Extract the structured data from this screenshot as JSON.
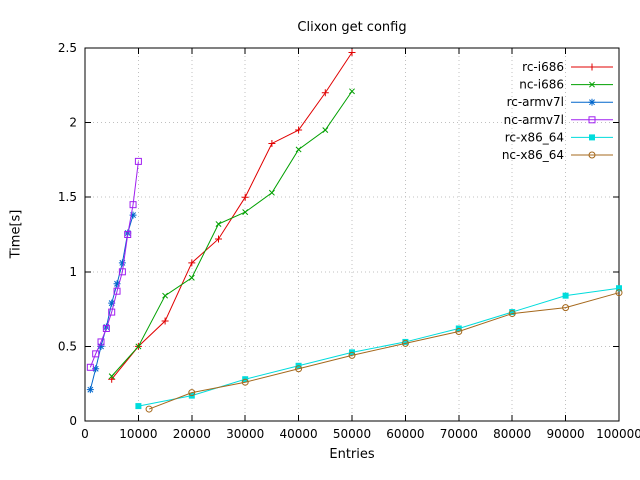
{
  "chart_data": {
    "type": "line",
    "title": "Clixon get config",
    "xlabel": "Entries",
    "ylabel": "Time[s]",
    "xlim": [
      0,
      100000
    ],
    "ylim": [
      0,
      2.5
    ],
    "xticks": [
      0,
      10000,
      20000,
      30000,
      40000,
      50000,
      60000,
      70000,
      80000,
      90000,
      100000
    ],
    "yticks": [
      0,
      0.5,
      1,
      1.5,
      2,
      2.5
    ],
    "grid": true,
    "grid_color": "#c0c0c0",
    "axis_color": "#000000",
    "legend_position": "top-right-inside",
    "series": [
      {
        "name": "rc-i686",
        "color": "#e00000",
        "marker": "plus",
        "points": [
          [
            5000,
            0.28
          ],
          [
            10000,
            0.5
          ],
          [
            15000,
            0.67
          ],
          [
            20000,
            1.06
          ],
          [
            25000,
            1.22
          ],
          [
            30000,
            1.5
          ],
          [
            35000,
            1.86
          ],
          [
            40000,
            1.95
          ],
          [
            45000,
            2.2
          ],
          [
            50000,
            2.47
          ]
        ]
      },
      {
        "name": "nc-i686",
        "color": "#00a000",
        "marker": "cross",
        "points": [
          [
            5000,
            0.3
          ],
          [
            10000,
            0.5
          ],
          [
            15000,
            0.84
          ],
          [
            20000,
            0.96
          ],
          [
            25000,
            1.32
          ],
          [
            30000,
            1.4
          ],
          [
            35000,
            1.53
          ],
          [
            40000,
            1.82
          ],
          [
            45000,
            1.95
          ],
          [
            50000,
            2.21
          ]
        ]
      },
      {
        "name": "rc-armv7l",
        "color": "#0066cc",
        "marker": "asterisk",
        "points": [
          [
            1000,
            0.21
          ],
          [
            2000,
            0.35
          ],
          [
            3000,
            0.5
          ],
          [
            4000,
            0.63
          ],
          [
            5000,
            0.79
          ],
          [
            6000,
            0.92
          ],
          [
            7000,
            1.06
          ],
          [
            8000,
            1.26
          ],
          [
            9000,
            1.38
          ]
        ]
      },
      {
        "name": "nc-armv7l",
        "color": "#a020f0",
        "marker": "square-open",
        "points": [
          [
            1000,
            0.36
          ],
          [
            2000,
            0.45
          ],
          [
            3000,
            0.53
          ],
          [
            4000,
            0.62
          ],
          [
            5000,
            0.73
          ],
          [
            6000,
            0.87
          ],
          [
            7000,
            1.0
          ],
          [
            8000,
            1.25
          ],
          [
            9000,
            1.45
          ],
          [
            10000,
            1.74
          ]
        ]
      },
      {
        "name": "rc-x86_64",
        "color": "#00dcdc",
        "marker": "square-filled",
        "points": [
          [
            10000,
            0.1
          ],
          [
            20000,
            0.17
          ],
          [
            30000,
            0.28
          ],
          [
            40000,
            0.37
          ],
          [
            50000,
            0.46
          ],
          [
            60000,
            0.53
          ],
          [
            70000,
            0.62
          ],
          [
            80000,
            0.73
          ],
          [
            90000,
            0.84
          ],
          [
            100000,
            0.89
          ]
        ]
      },
      {
        "name": "nc-x86_64",
        "color": "#a5681c",
        "marker": "circle-open",
        "points": [
          [
            12000,
            0.08
          ],
          [
            20000,
            0.19
          ],
          [
            30000,
            0.26
          ],
          [
            40000,
            0.35
          ],
          [
            50000,
            0.44
          ],
          [
            60000,
            0.52
          ],
          [
            70000,
            0.6
          ],
          [
            80000,
            0.72
          ],
          [
            90000,
            0.76
          ],
          [
            100000,
            0.86
          ]
        ]
      }
    ]
  }
}
